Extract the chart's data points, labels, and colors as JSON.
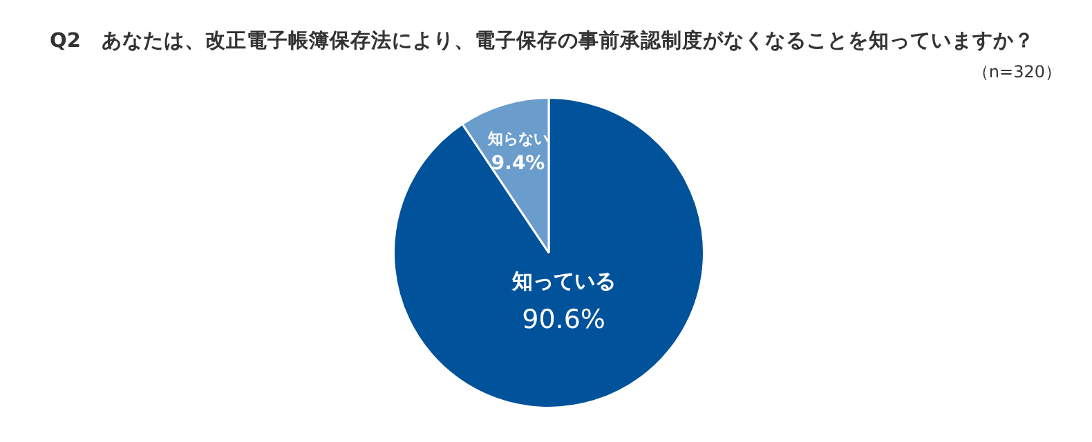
{
  "chart_data": {
    "type": "pie",
    "title": "Q2　あなたは、改正電子帳簿保存法により、電子保存の事前承認制度がなくなることを知っていますか？",
    "subtitle": "（n=320）",
    "categories": [
      "知っている",
      "知らない"
    ],
    "values": [
      90.6,
      9.4
    ],
    "colors": [
      "#00529b",
      "#6a9ccc"
    ],
    "value_labels": [
      "90.6%",
      "9.4%"
    ],
    "legend": false
  }
}
